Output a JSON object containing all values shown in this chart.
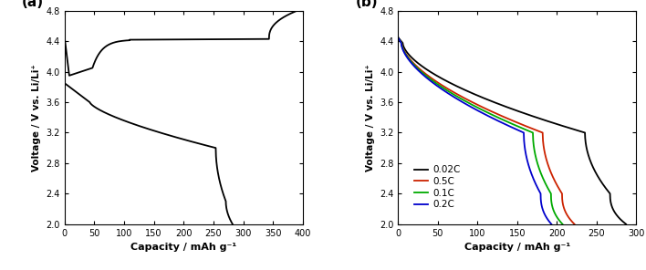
{
  "panel_a": {
    "label": "(a)",
    "xlabel": "Capacity / mAh g⁻¹",
    "ylabel": "Voltage / V vs. Li/Li⁺",
    "xlim": [
      0,
      400
    ],
    "ylim": [
      2.0,
      4.8
    ],
    "xticks": [
      0,
      50,
      100,
      150,
      200,
      250,
      300,
      350,
      400
    ],
    "yticks": [
      2.0,
      2.4,
      2.8,
      3.2,
      3.6,
      4.0,
      4.4,
      4.8
    ],
    "color": "#000000",
    "linewidth": 1.3,
    "charge_cap_max": 390,
    "discharge_cap_max": 282
  },
  "panel_b": {
    "label": "(b)",
    "xlabel": "Capacity / mAh g⁻¹",
    "ylabel": "Voltage / V vs. Li/Li⁺",
    "xlim": [
      0,
      300
    ],
    "ylim": [
      2.0,
      4.8
    ],
    "xticks": [
      0,
      50,
      100,
      150,
      200,
      250,
      300
    ],
    "yticks": [
      2.0,
      2.4,
      2.8,
      3.2,
      3.6,
      4.0,
      4.4,
      4.8
    ],
    "curves": [
      {
        "label": "0.02C",
        "color": "#000000",
        "capacity": 287
      },
      {
        "label": "0.5C",
        "color": "#cc2200",
        "capacity": 222
      },
      {
        "label": "0.1C",
        "color": "#00aa00",
        "capacity": 207
      },
      {
        "label": "0.2C",
        "color": "#0000cc",
        "capacity": 193
      }
    ],
    "linewidth": 1.3
  },
  "background_color": "#ffffff",
  "fig_width": 7.08,
  "fig_height": 2.96,
  "dpi": 100
}
